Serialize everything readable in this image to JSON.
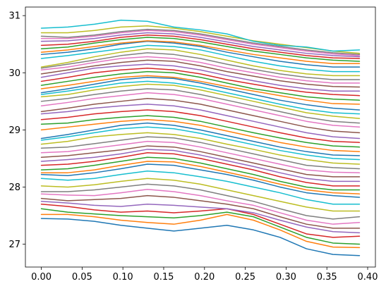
{
  "chart_data": {
    "type": "line",
    "title": "",
    "xlabel": "",
    "ylabel": "",
    "xlim": [
      -0.0195,
      0.4095
    ],
    "ylim": [
      26.6,
      31.15
    ],
    "x_ticks": [
      0.0,
      0.05,
      0.1,
      0.15,
      0.2,
      0.25,
      0.3,
      0.35,
      0.4
    ],
    "x_tick_labels": [
      "0.00",
      "0.05",
      "0.10",
      "0.15",
      "0.20",
      "0.25",
      "0.30",
      "0.35",
      "0.40"
    ],
    "y_ticks": [
      27,
      28,
      29,
      30,
      31
    ],
    "y_tick_labels": [
      "27",
      "28",
      "29",
      "30",
      "31"
    ],
    "grid": false,
    "legend": "none",
    "x": [
      0.0,
      0.0325,
      0.065,
      0.0975,
      0.13,
      0.1625,
      0.195,
      0.2275,
      0.26,
      0.2925,
      0.325,
      0.3575,
      0.39
    ],
    "series": [
      {
        "color": "#1f77b4",
        "values": [
          27.45,
          27.44,
          27.4,
          27.33,
          27.28,
          27.23,
          27.28,
          27.33,
          27.25,
          27.12,
          26.92,
          26.82,
          26.8
        ]
      },
      {
        "color": "#ff7f0e",
        "values": [
          27.52,
          27.52,
          27.48,
          27.42,
          27.38,
          27.35,
          27.42,
          27.52,
          27.42,
          27.25,
          27.05,
          26.95,
          26.94
        ]
      },
      {
        "color": "#2ca02c",
        "values": [
          27.62,
          27.56,
          27.53,
          27.5,
          27.48,
          27.46,
          27.5,
          27.56,
          27.48,
          27.3,
          27.12,
          27.02,
          27.0
        ]
      },
      {
        "color": "#d62728",
        "values": [
          27.7,
          27.66,
          27.6,
          27.56,
          27.58,
          27.55,
          27.58,
          27.62,
          27.52,
          27.35,
          27.18,
          27.12,
          27.14
        ]
      },
      {
        "color": "#9467bd",
        "values": [
          27.75,
          27.72,
          27.68,
          27.66,
          27.7,
          27.68,
          27.65,
          27.62,
          27.55,
          27.42,
          27.3,
          27.22,
          27.2
        ]
      },
      {
        "color": "#8c564b",
        "values": [
          27.8,
          27.76,
          27.78,
          27.8,
          27.85,
          27.82,
          27.76,
          27.7,
          27.62,
          27.48,
          27.35,
          27.28,
          27.28
        ]
      },
      {
        "color": "#e377c2",
        "values": [
          27.88,
          27.86,
          27.85,
          27.9,
          27.96,
          27.92,
          27.85,
          27.76,
          27.68,
          27.55,
          27.42,
          27.35,
          27.38
        ]
      },
      {
        "color": "#7f7f7f",
        "values": [
          27.92,
          27.92,
          27.95,
          28.0,
          28.05,
          28.02,
          27.95,
          27.85,
          27.75,
          27.62,
          27.5,
          27.44,
          27.48
        ]
      },
      {
        "color": "#bcbd22",
        "values": [
          28.02,
          28.0,
          28.04,
          28.1,
          28.15,
          28.12,
          28.05,
          27.95,
          27.85,
          27.75,
          27.65,
          27.58,
          27.58
        ]
      },
      {
        "color": "#17becf",
        "values": [
          28.15,
          28.12,
          28.15,
          28.22,
          28.28,
          28.25,
          28.18,
          28.1,
          28.0,
          27.9,
          27.78,
          27.7,
          27.7
        ]
      },
      {
        "color": "#1f77b4",
        "values": [
          28.22,
          28.2,
          28.25,
          28.32,
          28.4,
          28.38,
          28.3,
          28.22,
          28.12,
          28.0,
          27.9,
          27.85,
          27.82
        ]
      },
      {
        "color": "#ff7f0e",
        "values": [
          28.25,
          28.25,
          28.3,
          28.38,
          28.45,
          28.44,
          28.36,
          28.26,
          28.16,
          28.05,
          27.95,
          27.9,
          27.88
        ]
      },
      {
        "color": "#2ca02c",
        "values": [
          28.3,
          28.32,
          28.38,
          28.45,
          28.52,
          28.5,
          28.42,
          28.32,
          28.22,
          28.1,
          28.0,
          27.95,
          27.95
        ]
      },
      {
        "color": "#d62728",
        "values": [
          28.38,
          28.4,
          28.45,
          28.52,
          28.6,
          28.58,
          28.5,
          28.4,
          28.3,
          28.18,
          28.08,
          28.02,
          28.02
        ]
      },
      {
        "color": "#9467bd",
        "values": [
          28.45,
          28.48,
          28.52,
          28.58,
          28.66,
          28.64,
          28.56,
          28.46,
          28.36,
          28.25,
          28.15,
          28.1,
          28.1
        ]
      },
      {
        "color": "#8c564b",
        "values": [
          28.52,
          28.55,
          28.6,
          28.65,
          28.72,
          28.7,
          28.62,
          28.52,
          28.42,
          28.32,
          28.22,
          28.18,
          28.18
        ]
      },
      {
        "color": "#e377c2",
        "values": [
          28.6,
          28.62,
          28.68,
          28.74,
          28.8,
          28.78,
          28.7,
          28.6,
          28.5,
          28.4,
          28.3,
          28.26,
          28.25
        ]
      },
      {
        "color": "#7f7f7f",
        "values": [
          28.68,
          28.7,
          28.76,
          28.82,
          28.88,
          28.86,
          28.78,
          28.68,
          28.58,
          28.48,
          28.38,
          28.34,
          28.32
        ]
      },
      {
        "color": "#bcbd22",
        "values": [
          28.75,
          28.8,
          28.88,
          28.92,
          28.95,
          28.92,
          28.85,
          28.75,
          28.66,
          28.56,
          28.48,
          28.42,
          28.4
        ]
      },
      {
        "color": "#17becf",
        "values": [
          28.82,
          28.88,
          28.95,
          29.02,
          29.05,
          29.02,
          28.94,
          28.84,
          28.74,
          28.64,
          28.56,
          28.5,
          28.48
        ]
      },
      {
        "color": "#1f77b4",
        "values": [
          28.85,
          28.92,
          29.0,
          29.08,
          29.12,
          29.08,
          29.0,
          28.9,
          28.8,
          28.7,
          28.62,
          28.56,
          28.55
        ]
      },
      {
        "color": "#ff7f0e",
        "values": [
          29.0,
          29.05,
          29.1,
          29.15,
          29.18,
          29.15,
          29.08,
          28.98,
          28.88,
          28.78,
          28.7,
          28.64,
          28.62
        ]
      },
      {
        "color": "#2ca02c",
        "values": [
          29.1,
          29.12,
          29.18,
          29.22,
          29.25,
          29.22,
          29.15,
          29.05,
          28.95,
          28.86,
          28.78,
          28.72,
          28.7
        ]
      },
      {
        "color": "#d62728",
        "values": [
          29.18,
          29.22,
          29.28,
          29.32,
          29.35,
          29.32,
          29.25,
          29.15,
          29.05,
          28.95,
          28.86,
          28.8,
          28.78
        ]
      },
      {
        "color": "#9467bd",
        "values": [
          29.28,
          29.32,
          29.38,
          29.42,
          29.45,
          29.42,
          29.35,
          29.25,
          29.15,
          29.05,
          28.95,
          28.88,
          28.85
        ]
      },
      {
        "color": "#8c564b",
        "values": [
          29.32,
          29.38,
          29.45,
          29.5,
          29.55,
          29.52,
          29.45,
          29.35,
          29.25,
          29.15,
          29.05,
          28.98,
          28.95
        ]
      },
      {
        "color": "#e377c2",
        "values": [
          29.42,
          29.48,
          29.55,
          29.6,
          29.65,
          29.62,
          29.55,
          29.45,
          29.35,
          29.25,
          29.15,
          29.08,
          29.05
        ]
      },
      {
        "color": "#7f7f7f",
        "values": [
          29.5,
          29.55,
          29.62,
          29.68,
          29.72,
          29.7,
          29.62,
          29.52,
          29.42,
          29.32,
          29.22,
          29.15,
          29.12
        ]
      },
      {
        "color": "#bcbd22",
        "values": [
          29.58,
          29.62,
          29.7,
          29.76,
          29.8,
          29.78,
          29.7,
          29.6,
          29.5,
          29.4,
          29.3,
          29.24,
          29.2
        ]
      },
      {
        "color": "#17becf",
        "values": [
          29.62,
          29.68,
          29.75,
          29.82,
          29.85,
          29.82,
          29.75,
          29.65,
          29.55,
          29.45,
          29.36,
          29.3,
          29.28
        ]
      },
      {
        "color": "#1f77b4",
        "values": [
          29.65,
          29.72,
          29.8,
          29.88,
          29.92,
          29.9,
          29.82,
          29.72,
          29.62,
          29.52,
          29.44,
          29.38,
          29.35
        ]
      },
      {
        "color": "#ff7f0e",
        "values": [
          29.72,
          29.78,
          29.85,
          29.92,
          29.95,
          29.92,
          29.85,
          29.76,
          29.68,
          29.6,
          29.52,
          29.46,
          29.45
        ]
      },
      {
        "color": "#2ca02c",
        "values": [
          29.78,
          29.85,
          29.92,
          29.98,
          30.02,
          30.0,
          29.92,
          29.82,
          29.72,
          29.65,
          29.58,
          29.54,
          29.52
        ]
      },
      {
        "color": "#d62728",
        "values": [
          29.85,
          29.92,
          30.0,
          30.05,
          30.08,
          30.05,
          29.98,
          29.88,
          29.8,
          29.72,
          29.66,
          29.62,
          29.6
        ]
      },
      {
        "color": "#9467bd",
        "values": [
          29.92,
          30.0,
          30.08,
          30.12,
          30.15,
          30.12,
          30.05,
          29.95,
          29.86,
          29.78,
          29.72,
          29.68,
          29.68
        ]
      },
      {
        "color": "#8c564b",
        "values": [
          29.98,
          30.05,
          30.12,
          30.18,
          30.22,
          30.2,
          30.12,
          30.02,
          29.94,
          29.86,
          29.8,
          29.76,
          29.75
        ]
      },
      {
        "color": "#e377c2",
        "values": [
          30.05,
          30.1,
          30.18,
          30.25,
          30.28,
          30.25,
          30.18,
          30.08,
          30.0,
          29.92,
          29.86,
          29.82,
          29.82
        ]
      },
      {
        "color": "#7f7f7f",
        "values": [
          30.08,
          30.15,
          30.22,
          30.3,
          30.35,
          30.32,
          30.25,
          30.15,
          30.06,
          29.98,
          29.92,
          29.88,
          29.88
        ]
      },
      {
        "color": "#bcbd22",
        "values": [
          30.1,
          30.18,
          30.28,
          30.36,
          30.42,
          30.4,
          30.32,
          30.22,
          30.12,
          30.04,
          29.98,
          29.95,
          29.95
        ]
      },
      {
        "color": "#17becf",
        "values": [
          30.25,
          30.3,
          30.36,
          30.42,
          30.48,
          30.46,
          30.4,
          30.3,
          30.2,
          30.12,
          30.06,
          30.02,
          30.02
        ]
      },
      {
        "color": "#1f77b4",
        "values": [
          30.32,
          30.36,
          30.42,
          30.5,
          30.55,
          30.52,
          30.46,
          30.36,
          30.28,
          30.2,
          30.14,
          30.1,
          30.1
        ]
      },
      {
        "color": "#ff7f0e",
        "values": [
          30.36,
          30.4,
          30.46,
          30.52,
          30.56,
          30.54,
          30.48,
          30.4,
          30.32,
          30.26,
          30.2,
          30.16,
          30.16
        ]
      },
      {
        "color": "#2ca02c",
        "values": [
          30.42,
          30.45,
          30.52,
          30.58,
          30.62,
          30.6,
          30.54,
          30.46,
          30.38,
          30.32,
          30.26,
          30.22,
          30.2
        ]
      },
      {
        "color": "#d62728",
        "values": [
          30.48,
          30.5,
          30.55,
          30.62,
          30.66,
          30.64,
          30.58,
          30.5,
          30.42,
          30.36,
          30.3,
          30.26,
          30.25
        ]
      },
      {
        "color": "#9467bd",
        "values": [
          30.55,
          30.56,
          30.6,
          30.66,
          30.7,
          30.68,
          30.62,
          30.54,
          30.46,
          30.4,
          30.34,
          30.3,
          30.28
        ]
      },
      {
        "color": "#e377c2",
        "values": [
          30.6,
          30.6,
          30.64,
          30.7,
          30.74,
          30.72,
          30.66,
          30.58,
          30.5,
          30.44,
          30.38,
          30.33,
          30.3
        ]
      },
      {
        "color": "#7f7f7f",
        "values": [
          30.64,
          30.62,
          30.66,
          30.72,
          30.76,
          30.74,
          30.68,
          30.6,
          30.52,
          30.46,
          30.4,
          30.35,
          30.32
        ]
      },
      {
        "color": "#bcbd22",
        "values": [
          30.7,
          30.7,
          30.74,
          30.8,
          30.82,
          30.78,
          30.72,
          30.64,
          30.56,
          30.5,
          30.44,
          30.38,
          30.34
        ]
      },
      {
        "color": "#17becf",
        "values": [
          30.78,
          30.8,
          30.85,
          30.92,
          30.9,
          30.8,
          30.75,
          30.68,
          30.55,
          30.48,
          30.45,
          30.38,
          30.4
        ]
      }
    ]
  }
}
